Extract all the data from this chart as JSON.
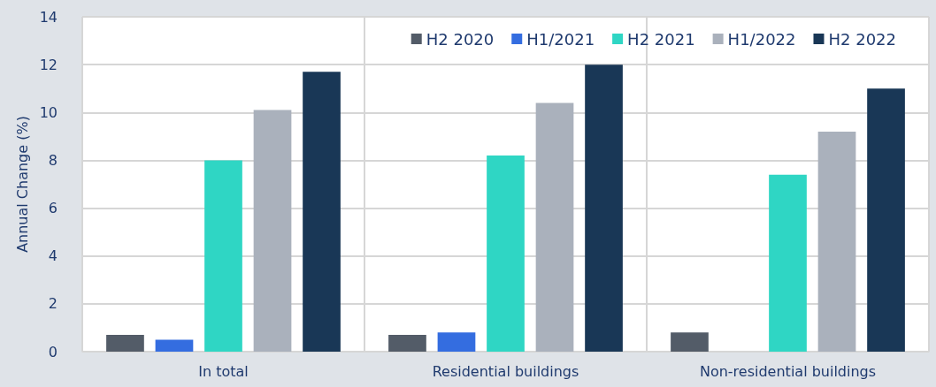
{
  "chart_data": {
    "type": "bar",
    "ylabel": "Annual Change (%)",
    "categories": [
      "In total",
      "Residential buildings",
      "Non-residential buildings"
    ],
    "series": [
      {
        "name": "H2 2020",
        "color": "#535c68",
        "values": [
          0.7,
          0.7,
          0.8
        ]
      },
      {
        "name": "H1/2021",
        "color": "#346de0",
        "values": [
          0.5,
          0.8,
          null
        ]
      },
      {
        "name": "H2 2021",
        "color": "#2fd6c4",
        "values": [
          8.0,
          8.2,
          7.4
        ]
      },
      {
        "name": "H1/2022",
        "color": "#aab1bc",
        "values": [
          10.1,
          10.4,
          9.2
        ]
      },
      {
        "name": "H2 2022",
        "color": "#193756",
        "values": [
          11.7,
          12.0,
          11.0
        ]
      }
    ],
    "ylim": [
      0,
      14
    ],
    "yticks": [
      0,
      2,
      4,
      6,
      8,
      10,
      12,
      14
    ],
    "grid": true,
    "legend": "top right"
  }
}
